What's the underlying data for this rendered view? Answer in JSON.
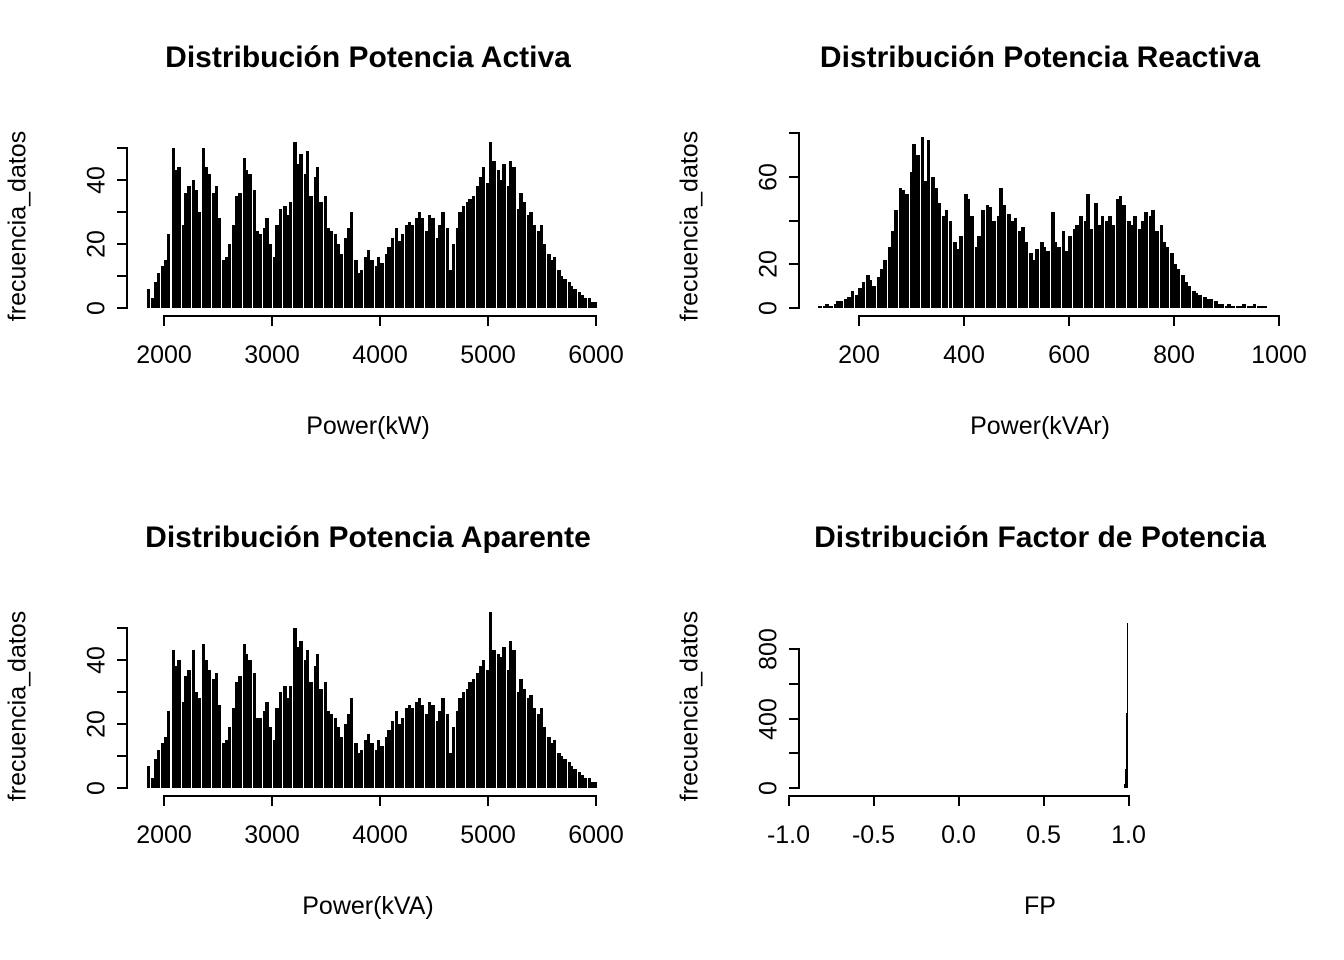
{
  "figure": {
    "background_color": "#ffffff",
    "ink_color": "#000000",
    "layout": "2x2 histogram grid (R base graphics)"
  },
  "chart_data": [
    {
      "type": "bar",
      "subtype": "histogram",
      "title": "Distribución Potencia Activa",
      "xlabel": "Power(kW)",
      "ylabel": "frecuencia_datos",
      "xlim": [
        1850,
        6050
      ],
      "ylim": [
        0,
        52
      ],
      "grid": false,
      "bar_color": "#000000",
      "x_ticks": [
        {
          "v": 2000,
          "label": "2000"
        },
        {
          "v": 3000,
          "label": "3000"
        },
        {
          "v": 4000,
          "label": "4000"
        },
        {
          "v": 5000,
          "label": "5000"
        },
        {
          "v": 6000,
          "label": "6000"
        }
      ],
      "y_ticks": [
        {
          "v": 0,
          "label": "0"
        },
        {
          "v": 10,
          "label": ""
        },
        {
          "v": 20,
          "label": "20"
        },
        {
          "v": 30,
          "label": ""
        },
        {
          "v": 40,
          "label": "40"
        },
        {
          "v": 50,
          "label": ""
        }
      ],
      "bins": {
        "x_start": 1850,
        "bin_width": 31.35,
        "counts": [
          6,
          3,
          8,
          11,
          13,
          15,
          23,
          50,
          43,
          44,
          26,
          36,
          38,
          40,
          37,
          30,
          50,
          44,
          42,
          36,
          38,
          28,
          15,
          16,
          20,
          26,
          35,
          36,
          47,
          43,
          42,
          37,
          24,
          23,
          25,
          28,
          20,
          16,
          26,
          31,
          32,
          29,
          33,
          52,
          45,
          48,
          42,
          49,
          35,
          41,
          44,
          33,
          35,
          25,
          24,
          23,
          20,
          17,
          22,
          25,
          30,
          15,
          11,
          12,
          16,
          18,
          15,
          13,
          16,
          14,
          17,
          19,
          22,
          25,
          21,
          23,
          26,
          27,
          26,
          28,
          30,
          28,
          24,
          29,
          28,
          22,
          26,
          30,
          25,
          12,
          20,
          25,
          30,
          32,
          33,
          34,
          35,
          38,
          41,
          44,
          39,
          52,
          46,
          43,
          40,
          45,
          38,
          46,
          44,
          31,
          36,
          33,
          29,
          30,
          26,
          24,
          26,
          20,
          17,
          15,
          16,
          12,
          10,
          9,
          8,
          7,
          6,
          5,
          4,
          3,
          3,
          2,
          2
        ]
      }
    },
    {
      "type": "bar",
      "subtype": "histogram",
      "title": "Distribución Potencia Reactiva",
      "xlabel": "Power(kVAr)",
      "ylabel": "frecuencia_datos",
      "xlim": [
        120,
        990
      ],
      "ylim": [
        0,
        78
      ],
      "grid": false,
      "bar_color": "#000000",
      "x_ticks": [
        {
          "v": 200,
          "label": "200"
        },
        {
          "v": 400,
          "label": "400"
        },
        {
          "v": 600,
          "label": "600"
        },
        {
          "v": 800,
          "label": "800"
        },
        {
          "v": 1000,
          "label": "1000"
        }
      ],
      "y_ticks": [
        {
          "v": 0,
          "label": "0"
        },
        {
          "v": 20,
          "label": "20"
        },
        {
          "v": 40,
          "label": ""
        },
        {
          "v": 60,
          "label": "60"
        },
        {
          "v": 80,
          "label": ""
        }
      ],
      "bins": {
        "x_start": 124,
        "bin_width": 6.9,
        "counts": [
          1,
          1,
          2,
          1,
          2,
          3,
          3,
          4,
          5,
          8,
          6,
          9,
          12,
          15,
          13,
          10,
          14,
          18,
          22,
          28,
          35,
          45,
          55,
          54,
          52,
          62,
          75,
          70,
          78,
          58,
          77,
          60,
          55,
          48,
          42,
          45,
          40,
          30,
          27,
          33,
          52,
          50,
          42,
          28,
          33,
          45,
          47,
          46,
          40,
          42,
          55,
          47,
          43,
          40,
          41,
          35,
          37,
          30,
          25,
          22,
          27,
          30,
          28,
          26,
          44,
          30,
          28,
          35,
          26,
          33,
          36,
          38,
          42,
          40,
          52,
          36,
          48,
          38,
          42,
          40,
          42,
          38,
          50,
          51,
          47,
          40,
          38,
          42,
          36,
          40,
          44,
          42,
          45,
          35,
          38,
          30,
          28,
          25,
          20,
          18,
          15,
          12,
          10,
          8,
          7,
          6,
          5,
          4,
          4,
          3,
          2,
          2,
          1,
          2,
          1,
          1,
          1,
          2,
          1,
          1,
          2,
          1,
          1,
          1
        ]
      }
    },
    {
      "type": "bar",
      "subtype": "histogram",
      "title": "Distribución Potencia Aparente",
      "xlabel": "Power(kVA)",
      "ylabel": "frecuencia_datos",
      "xlim": [
        1850,
        6050
      ],
      "ylim": [
        0,
        55
      ],
      "grid": false,
      "bar_color": "#000000",
      "x_ticks": [
        {
          "v": 2000,
          "label": "2000"
        },
        {
          "v": 3000,
          "label": "3000"
        },
        {
          "v": 4000,
          "label": "4000"
        },
        {
          "v": 5000,
          "label": "5000"
        },
        {
          "v": 6000,
          "label": "6000"
        }
      ],
      "y_ticks": [
        {
          "v": 0,
          "label": "0"
        },
        {
          "v": 10,
          "label": ""
        },
        {
          "v": 20,
          "label": "20"
        },
        {
          "v": 30,
          "label": ""
        },
        {
          "v": 40,
          "label": "40"
        },
        {
          "v": 50,
          "label": ""
        }
      ],
      "bins": {
        "x_start": 1850,
        "bin_width": 31.35,
        "counts": [
          7,
          3,
          9,
          12,
          14,
          16,
          24,
          43,
          38,
          40,
          27,
          35,
          37,
          43,
          30,
          28,
          45,
          40,
          37,
          34,
          36,
          26,
          14,
          15,
          19,
          25,
          33,
          35,
          45,
          42,
          40,
          36,
          22,
          22,
          24,
          27,
          19,
          15,
          25,
          30,
          32,
          28,
          32,
          50,
          44,
          46,
          40,
          43,
          33,
          38,
          42,
          31,
          33,
          24,
          23,
          22,
          19,
          16,
          20,
          23,
          28,
          14,
          11,
          12,
          15,
          17,
          14,
          12,
          15,
          13,
          16,
          18,
          21,
          24,
          20,
          22,
          25,
          26,
          25,
          27,
          28,
          26,
          23,
          27,
          26,
          21,
          24,
          28,
          23,
          11,
          19,
          24,
          28,
          30,
          31,
          33,
          34,
          36,
          38,
          40,
          37,
          55,
          43,
          42,
          41,
          44,
          37,
          46,
          43,
          30,
          34,
          31,
          28,
          29,
          25,
          23,
          25,
          19,
          16,
          14,
          15,
          11,
          10,
          9,
          8,
          7,
          6,
          5,
          4,
          3,
          3,
          2,
          2
        ]
      }
    },
    {
      "type": "bar",
      "subtype": "histogram",
      "title": "Distribución Factor de Potencia",
      "xlabel": "FP",
      "ylabel": "frecuencia_datos",
      "xlim": [
        -1.0,
        1.0
      ],
      "ylim": [
        0,
        950
      ],
      "grid": false,
      "bar_color": "#000000",
      "x_ticks": [
        {
          "v": -1.0,
          "label": "-1.0"
        },
        {
          "v": -0.5,
          "label": "-0.5"
        },
        {
          "v": 0.0,
          "label": "0.0"
        },
        {
          "v": 0.5,
          "label": "0.5"
        },
        {
          "v": 1.0,
          "label": "1.0"
        }
      ],
      "y_ticks": [
        {
          "v": 0,
          "label": "0"
        },
        {
          "v": 200,
          "label": ""
        },
        {
          "v": 400,
          "label": "400"
        },
        {
          "v": 600,
          "label": ""
        },
        {
          "v": 800,
          "label": "800"
        }
      ],
      "bins": {
        "x_start": 0.98,
        "bin_width": 0.005,
        "counts": [
          25,
          110,
          430,
          950
        ]
      }
    }
  ]
}
